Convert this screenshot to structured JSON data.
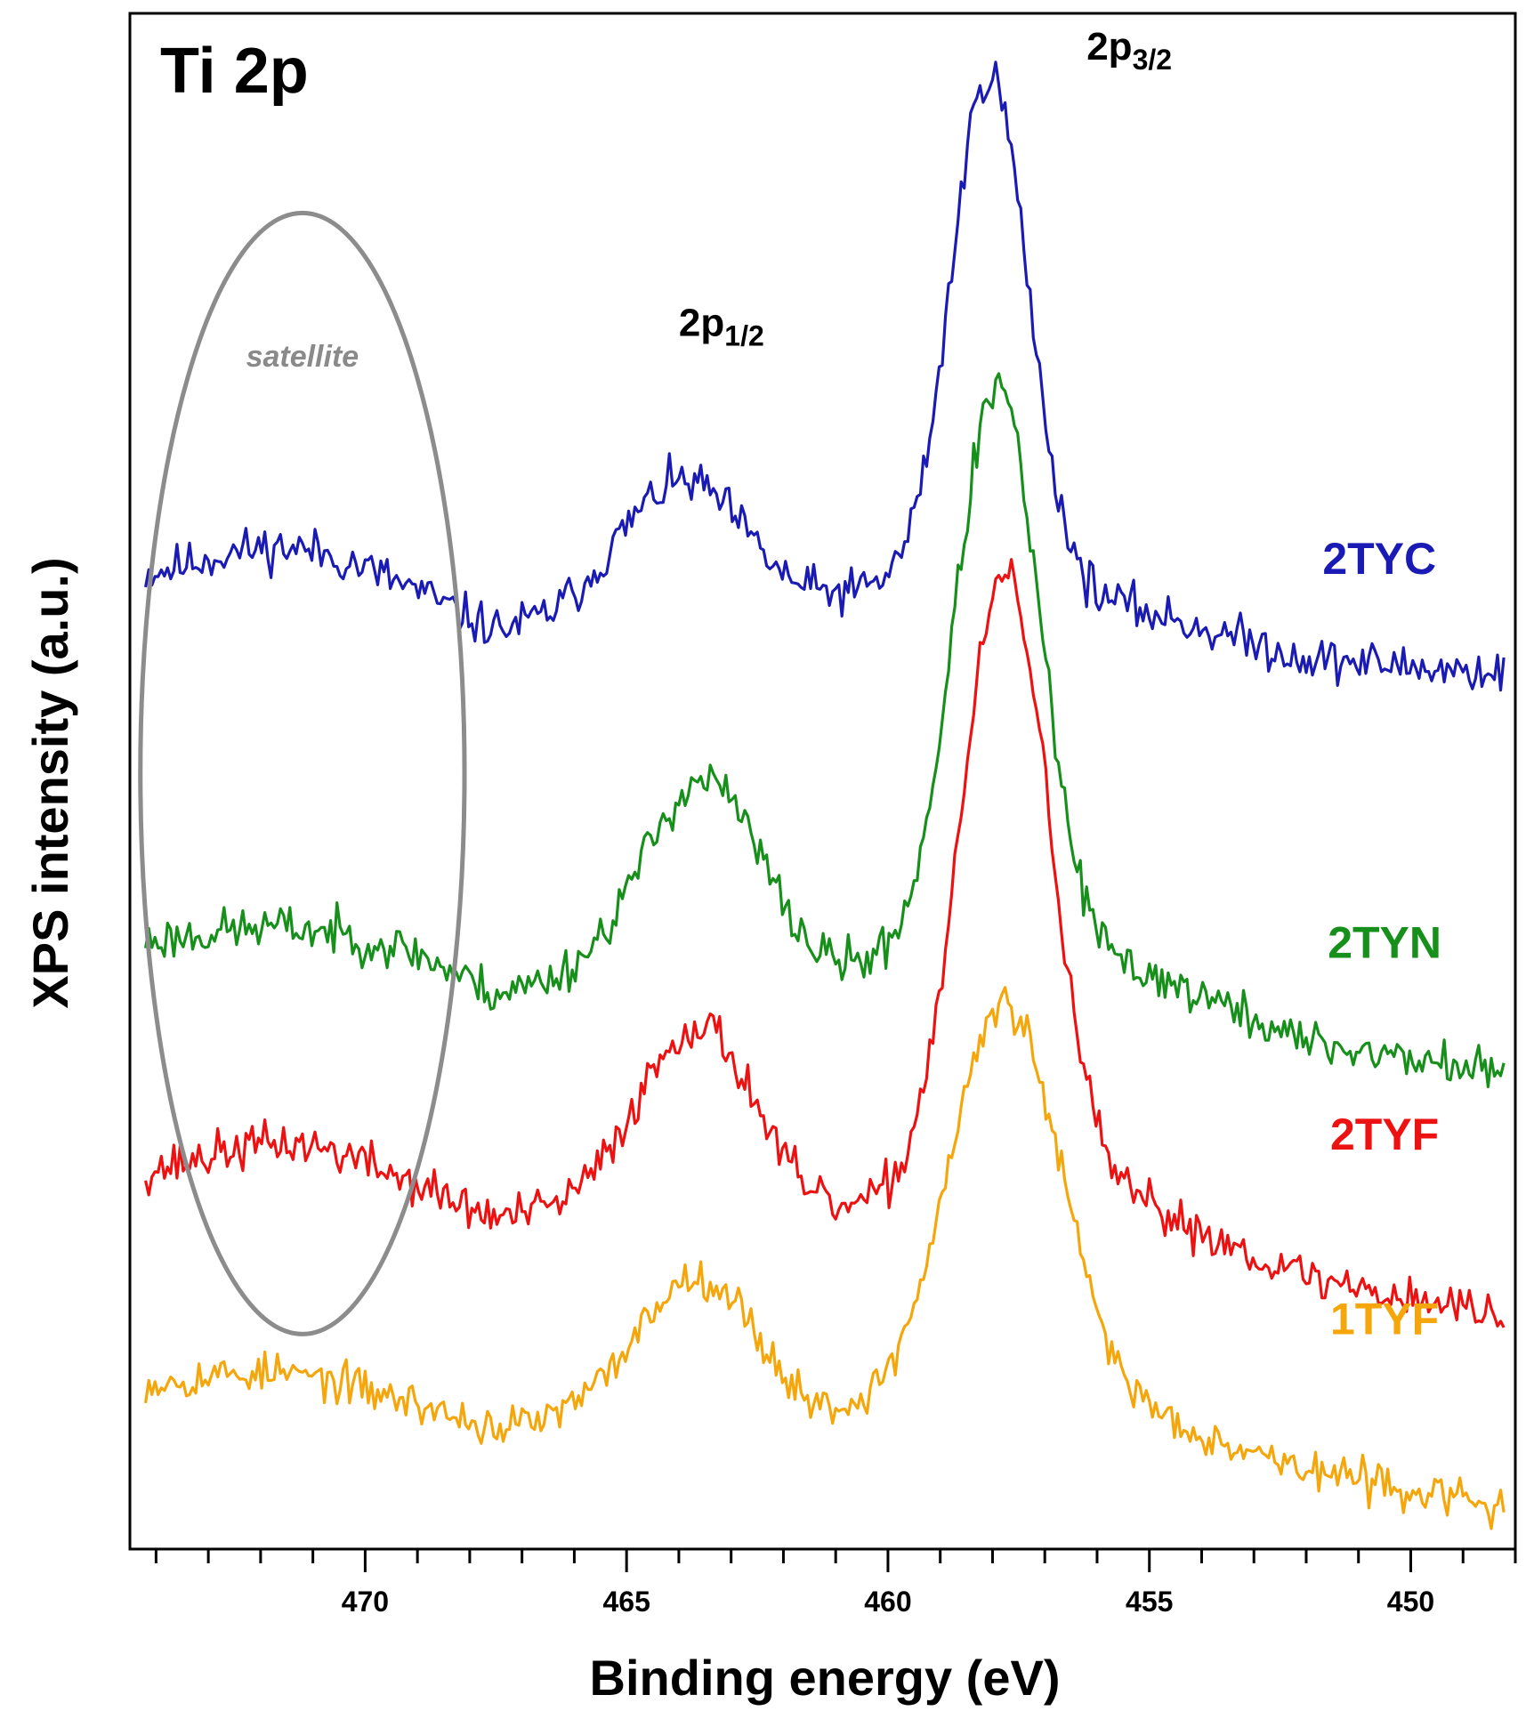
{
  "chart_data": {
    "type": "line",
    "title": "Ti 2p",
    "xlabel": "Binding energy (eV)",
    "ylabel": "XPS intensity (a.u.)",
    "xlim": [
      474.5,
      448.0
    ],
    "x_reversed": true,
    "ylim": [
      0,
      100
    ],
    "grid": false,
    "x_ticks": [
      470,
      465,
      460,
      455,
      450
    ],
    "x_tick_labels": [
      "470",
      "465",
      "460",
      "455",
      "450"
    ],
    "minor_tick_step": 1,
    "annotations": {
      "p12": {
        "main": "2p",
        "sub": "1/2",
        "x": 464.0,
        "y": 79
      },
      "p32": {
        "main": "2p",
        "sub": "3/2",
        "x": 456.2,
        "y": 97
      },
      "satellite": {
        "text": "satellite",
        "x": 471.2,
        "y": 77
      }
    },
    "satellite_region": {
      "x_center": 471.2,
      "x_half_width": 3.1,
      "y_center": 50.5,
      "y_half_height": 36.5
    },
    "series": [
      {
        "name": "2TYC",
        "color": "#1a1ab5",
        "offset": 62.5,
        "label_x": 450.6,
        "label_y": 63.5,
        "baseline": [
          [
            474.2,
            0.0
          ],
          [
            469.0,
            -1.5
          ],
          [
            467.5,
            -3.0
          ],
          [
            465.0,
            -1.5
          ],
          [
            462.0,
            -1.5
          ],
          [
            458.5,
            1.5
          ],
          [
            455.0,
            -1.5
          ],
          [
            452.0,
            -4.5
          ],
          [
            448.2,
            -5.5
          ]
        ],
        "peaks": [
          [
            471.4,
            3.5,
            1.8
          ],
          [
            463.9,
            8.5,
            1.2
          ],
          [
            458.05,
            32.5,
            0.72
          ]
        ],
        "noise": 0.9,
        "seed": 11
      },
      {
        "name": "2TYN",
        "color": "#16901a",
        "offset": 39.0,
        "label_x": 450.5,
        "label_y": 38.5,
        "baseline": [
          [
            474.2,
            0.0
          ],
          [
            469.0,
            -1.0
          ],
          [
            467.5,
            -3.0
          ],
          [
            465.0,
            -1.0
          ],
          [
            461.5,
            -2.0
          ],
          [
            458.5,
            0.5
          ],
          [
            455.0,
            -1.5
          ],
          [
            452.0,
            -6.0
          ],
          [
            448.2,
            -8.0
          ]
        ],
        "peaks": [
          [
            471.4,
            2.0,
            1.8
          ],
          [
            463.5,
            12.5,
            1.1
          ],
          [
            457.9,
            36.5,
            0.8
          ]
        ],
        "noise": 0.9,
        "seed": 23
      },
      {
        "name": "2TYF",
        "color": "#ee1111",
        "offset": 23.7,
        "label_x": 450.5,
        "label_y": 26.0,
        "baseline": [
          [
            474.2,
            0.0
          ],
          [
            469.0,
            -1.5
          ],
          [
            467.5,
            -2.5
          ],
          [
            465.0,
            -1.0
          ],
          [
            461.5,
            -2.5
          ],
          [
            458.5,
            0.0
          ],
          [
            455.0,
            -1.5
          ],
          [
            452.0,
            -6.0
          ],
          [
            448.2,
            -8.5
          ]
        ],
        "peaks": [
          [
            471.3,
            3.5,
            1.8
          ],
          [
            463.6,
            12.0,
            1.1
          ],
          [
            457.75,
            40.0,
            0.85
          ]
        ],
        "noise": 0.9,
        "seed": 37
      },
      {
        "name": "1TYF",
        "color": "#f5a60a",
        "offset": 10.2,
        "label_x": 450.5,
        "label_y": 14.0,
        "baseline": [
          [
            474.2,
            0.0
          ],
          [
            469.0,
            -1.5
          ],
          [
            467.5,
            -2.5
          ],
          [
            465.0,
            -1.0
          ],
          [
            461.5,
            -2.0
          ],
          [
            458.5,
            0.0
          ],
          [
            455.0,
            -1.5
          ],
          [
            452.0,
            -5.0
          ],
          [
            448.2,
            -7.5
          ]
        ],
        "peaks": [
          [
            471.5,
            2.0,
            1.8
          ],
          [
            463.6,
            9.0,
            1.1
          ],
          [
            457.75,
            25.5,
            1.05
          ]
        ],
        "noise": 0.8,
        "seed": 53
      }
    ]
  }
}
